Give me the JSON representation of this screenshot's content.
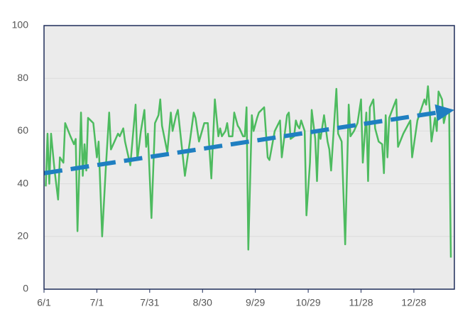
{
  "chart_data": {
    "type": "line",
    "x": [
      1,
      2,
      3,
      4,
      6,
      8,
      9,
      11,
      12,
      15,
      17,
      18,
      19,
      21,
      22,
      23,
      24,
      25,
      28,
      30,
      31,
      33,
      35,
      37,
      38,
      42,
      43,
      45,
      46,
      49,
      52,
      53,
      55,
      57,
      58,
      59,
      61,
      63,
      65,
      66,
      67,
      70,
      72,
      73,
      75,
      76,
      80,
      83,
      85,
      86,
      88,
      91,
      93,
      95,
      97,
      99,
      100,
      101,
      103,
      104,
      105,
      107,
      108,
      110,
      111,
      113,
      114,
      115,
      116,
      118,
      119,
      121,
      122,
      125,
      127,
      128,
      131,
      134,
      135,
      138,
      139,
      140,
      142,
      143,
      144,
      145,
      146,
      148,
      149,
      151,
      152,
      154,
      155,
      156,
      157,
      159,
      161,
      162,
      163,
      166,
      167,
      169,
      171,
      173,
      174,
      176,
      178,
      180,
      181,
      183,
      184,
      185,
      187,
      188,
      190,
      192,
      193,
      194,
      195,
      196,
      200,
      201,
      204,
      208,
      209,
      212,
      216,
      217,
      218,
      219,
      220,
      222,
      223,
      224,
      226,
      227,
      228,
      230,
      231
    ],
    "series": [
      {
        "color": "#4dbb5f",
        "values": [
          39,
          59,
          40,
          59,
          45,
          34,
          50,
          48,
          63,
          58,
          55,
          57,
          22,
          67,
          43,
          55,
          45,
          65,
          63,
          50,
          56,
          20,
          45,
          67,
          53,
          59,
          58,
          61,
          56,
          47,
          70,
          49,
          60,
          68,
          54,
          59,
          27,
          63,
          66,
          72,
          62,
          52,
          67,
          60,
          66,
          68,
          43,
          57,
          67,
          65,
          56,
          63,
          63,
          42,
          72,
          58,
          61,
          58,
          60,
          63,
          58,
          58,
          67,
          62,
          61,
          58,
          58,
          69,
          15,
          66,
          60,
          65,
          67,
          69,
          50,
          49,
          60,
          64,
          50,
          66,
          67,
          57,
          58,
          64,
          62,
          61,
          64,
          60,
          28,
          48,
          68,
          57,
          41,
          60,
          57,
          66,
          56,
          53,
          45,
          76,
          59,
          56,
          17,
          70,
          58,
          60,
          63,
          72,
          48,
          67,
          41,
          69,
          72,
          61,
          56,
          55,
          44,
          66,
          50,
          65,
          72,
          54,
          59,
          64,
          50,
          64,
          72,
          70,
          77,
          68,
          56,
          65,
          60,
          75,
          72,
          63,
          66,
          68,
          12
        ]
      }
    ],
    "trend": {
      "color": "#1f7fc1",
      "x": [
        0,
        233
      ],
      "values": [
        44,
        68
      ]
    },
    "xlim": [
      0,
      233
    ],
    "xticks": [
      {
        "value": 0,
        "label": "6/1"
      },
      {
        "value": 30,
        "label": "7/1"
      },
      {
        "value": 60,
        "label": "7/31"
      },
      {
        "value": 90,
        "label": "8/30"
      },
      {
        "value": 120,
        "label": "9/29"
      },
      {
        "value": 150,
        "label": "10/29"
      },
      {
        "value": 180,
        "label": "11/28"
      },
      {
        "value": 210,
        "label": "12/28"
      }
    ],
    "ylim": [
      0,
      100
    ],
    "yticks": [
      0,
      20,
      40,
      60,
      80,
      100
    ],
    "grid": true
  }
}
